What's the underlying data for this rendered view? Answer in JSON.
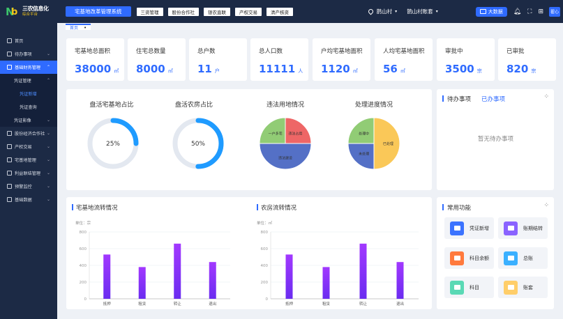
{
  "header": {
    "logo_title": "三农信息化",
    "logo_subtitle": "综合平台",
    "system_title": "宅基地改革管理系统",
    "nav": [
      "三资管理",
      "股份合作社",
      "银农直联",
      "产权交易",
      "清产核资"
    ],
    "village": "鹊山村",
    "account": "鹊山村账套",
    "bigdata_label": "大数据",
    "user_badge": "翟心"
  },
  "sidebar": {
    "items": [
      {
        "label": "首页",
        "icon": "home-icon"
      },
      {
        "label": "待办事项",
        "icon": "todo-icon"
      },
      {
        "label": "基础财务管理",
        "icon": "finance-icon",
        "active": true
      },
      {
        "label": "凭证管理",
        "sub": true
      },
      {
        "label": "凭证新增",
        "deep": true,
        "current": true
      },
      {
        "label": "凭证查询",
        "deep": true
      },
      {
        "label": "凭证影像",
        "sub": true
      },
      {
        "label": "股份经济合作社",
        "icon": "coop-icon"
      },
      {
        "label": "产权交易",
        "icon": "trade-icon"
      },
      {
        "label": "宅基地管理",
        "icon": "homestead-icon"
      },
      {
        "label": "利益联结管理",
        "icon": "link-icon"
      },
      {
        "label": "预警监控",
        "icon": "alert-icon"
      },
      {
        "label": "基础数据",
        "icon": "data-icon"
      }
    ]
  },
  "breadcrumb": {
    "tab": "首页"
  },
  "stats": [
    {
      "label": "宅基地总面积",
      "value": "38000",
      "unit": "㎡"
    },
    {
      "label": "住宅总数量",
      "value": "8000",
      "unit": "㎡"
    },
    {
      "label": "总户数",
      "value": "11",
      "unit": "户"
    },
    {
      "label": "总人口数",
      "value": "11111",
      "unit": "人"
    },
    {
      "label": "户均宅基地面积",
      "value": "1120",
      "unit": "㎡"
    },
    {
      "label": "人均宅基地面积",
      "value": "56",
      "unit": "㎡"
    },
    {
      "label": "审批中",
      "value": "3500",
      "unit": "宗"
    },
    {
      "label": "已审批",
      "value": "820",
      "unit": "宗"
    }
  ],
  "rings": [
    {
      "title": "盘活宅基地占比",
      "value_text": "25%",
      "fraction": 0.25
    },
    {
      "title": "盘活农房占比",
      "value_text": "50%",
      "fraction": 0.5
    }
  ],
  "pies": [
    {
      "title": "违法用地情况",
      "slices": [
        {
          "label": "违法占用",
          "value": 0.25,
          "color": "#ee6666"
        },
        {
          "label": "违法建设",
          "value": 0.5,
          "color": "#5470c6"
        },
        {
          "label": "一户多宅",
          "value": 0.25,
          "color": "#91cc75"
        }
      ]
    },
    {
      "title": "处理进度情况",
      "slices": [
        {
          "label": "已处理",
          "value": 0.5,
          "color": "#fac858"
        },
        {
          "label": "未处理",
          "value": 0.25,
          "color": "#5470c6"
        },
        {
          "label": "处理中",
          "value": 0.25,
          "color": "#91cc75"
        }
      ]
    }
  ],
  "todo": {
    "tab_pending": "待办事项",
    "tab_done": "已办事项",
    "empty_text": "暂无待办事项"
  },
  "functions": {
    "title": "常用功能",
    "items": [
      {
        "label": "凭证新增",
        "color": "#3b73ff"
      },
      {
        "label": "账期结转",
        "color": "#8a63ff"
      },
      {
        "label": "科目余额",
        "color": "#ff7a3d"
      },
      {
        "label": "总账",
        "color": "#3bb0ff"
      },
      {
        "label": "科目",
        "color": "#5ad9b5"
      },
      {
        "label": "账套",
        "color": "#ffce6a"
      }
    ]
  },
  "chart_data": [
    {
      "type": "bar",
      "title": "宅基地流转情况",
      "ylabel": "单位：宗",
      "categories": [
        "抵押",
        "租赁",
        "转让",
        "退出"
      ],
      "values": [
        530,
        380,
        660,
        440
      ],
      "ylim": [
        0,
        800
      ],
      "yticks": [
        "0",
        "200",
        "400",
        "600",
        "800"
      ]
    },
    {
      "type": "bar",
      "title": "农房流转情况",
      "ylabel": "单位：㎡",
      "categories": [
        "抵押",
        "租赁",
        "转让",
        "退出"
      ],
      "values": [
        530,
        380,
        660,
        440
      ],
      "ylim": [
        0,
        800
      ],
      "yticks": [
        "0",
        "200",
        "400",
        "600",
        "800"
      ]
    }
  ]
}
